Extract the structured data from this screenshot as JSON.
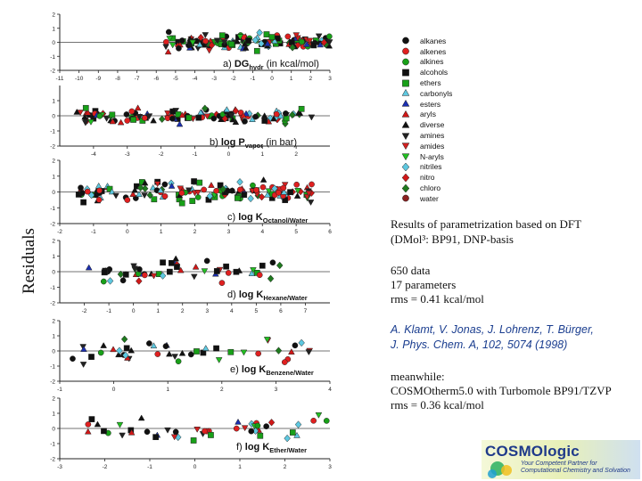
{
  "side_label": "Residuals",
  "chart_data": [
    {
      "type": "scatter",
      "title": "a) DGhydr (in kcal/mol)",
      "title_parts": {
        "prefix": "a) ",
        "main": "DG",
        "sub": "hydr",
        "suffix": " (in kcal/mol)"
      },
      "xlim": [
        -11,
        3
      ],
      "ylim": [
        -2,
        2
      ],
      "xticks": [
        "-11",
        "-10",
        "-9",
        "-8",
        "-7",
        "-6",
        "-5",
        "-4",
        "-3",
        "-2",
        "-1",
        "0",
        "1",
        "2",
        "3"
      ],
      "yticks": [
        "2",
        "1",
        "0",
        "-1",
        "-2"
      ],
      "xtick_values": [
        -11,
        -10,
        -9,
        -8,
        -7,
        -6,
        -5,
        -4,
        -3,
        -2,
        -1,
        0,
        1,
        2,
        3
      ],
      "ytick_values": [
        2,
        1,
        0,
        -1,
        -2
      ],
      "cluster_x": [
        -6,
        3
      ],
      "cluster_spread": 0.35,
      "n_points": 150,
      "seed": 11
    },
    {
      "type": "scatter",
      "title": "b) log Pvapor (in bar)",
      "title_parts": {
        "prefix": "b) ",
        "main": "log P",
        "sub": "vapor",
        "suffix": " (in bar)"
      },
      "xlim": [
        -5,
        3
      ],
      "ylim": [
        -2,
        2
      ],
      "xticks": [
        "-4",
        "-3",
        "-2",
        "-1",
        "0",
        "1",
        "2"
      ],
      "yticks": [
        "1",
        "0",
        "-1",
        "-2"
      ],
      "xtick_values": [
        -4,
        -3,
        -2,
        -1,
        0,
        1,
        2
      ],
      "ytick_values": [
        1,
        0,
        -1,
        -2
      ],
      "cluster_x": [
        -4.5,
        2.5
      ],
      "cluster_spread": 0.35,
      "n_points": 130,
      "seed": 23
    },
    {
      "type": "scatter",
      "title": "c) log KOctanol/Water",
      "title_parts": {
        "prefix": "c) ",
        "main": "log K",
        "sub": "Octanol/Water",
        "suffix": ""
      },
      "xlim": [
        -2,
        6
      ],
      "ylim": [
        -2,
        2
      ],
      "xticks": [
        "-2",
        "-1",
        "0",
        "1",
        "2",
        "3",
        "4",
        "5",
        "6"
      ],
      "yticks": [
        "2",
        "1",
        "0",
        "-1",
        "-2"
      ],
      "xtick_values": [
        -2,
        -1,
        0,
        1,
        2,
        3,
        4,
        5,
        6
      ],
      "ytick_values": [
        2,
        1,
        0,
        -1,
        -2
      ],
      "cluster_x": [
        -1.5,
        5.5
      ],
      "cluster_spread": 0.4,
      "n_points": 150,
      "seed": 37
    },
    {
      "type": "scatter",
      "title": "d) log KHexane/Water",
      "title_parts": {
        "prefix": "d) ",
        "main": "log K",
        "sub": "Hexane/Water",
        "suffix": ""
      },
      "xlim": [
        -3,
        8
      ],
      "ylim": [
        -2,
        2
      ],
      "xticks": [
        "-2",
        "-1",
        "0",
        "1",
        "2",
        "3",
        "4",
        "5",
        "6",
        "7"
      ],
      "yticks": [
        "2",
        "1",
        "0",
        "-1",
        "-2"
      ],
      "xtick_values": [
        -2,
        -1,
        0,
        1,
        2,
        3,
        4,
        5,
        6,
        7
      ],
      "ytick_values": [
        2,
        1,
        0,
        -1,
        -2
      ],
      "cluster_x": [
        -2,
        6
      ],
      "cluster_spread": 0.45,
      "n_points": 55,
      "seed": 41
    },
    {
      "type": "scatter",
      "title": "e) log KBenzene/Water",
      "title_parts": {
        "prefix": "e) ",
        "main": "log K",
        "sub": "Benzene/Water",
        "suffix": ""
      },
      "xlim": [
        -1,
        4
      ],
      "ylim": [
        -2,
        2
      ],
      "xticks": [
        "-1",
        "0",
        "1",
        "2",
        "3",
        "4"
      ],
      "yticks": [
        "2",
        "1",
        "0",
        "-1",
        "-2"
      ],
      "xtick_values": [
        -1,
        0,
        1,
        2,
        3,
        4
      ],
      "ytick_values": [
        2,
        1,
        0,
        -1,
        -2
      ],
      "cluster_x": [
        -1,
        4
      ],
      "cluster_spread": 0.5,
      "n_points": 45,
      "seed": 53
    },
    {
      "type": "scatter",
      "title": "f) log KEther/Water",
      "title_parts": {
        "prefix": "f) ",
        "main": "log K",
        "sub": "Ether/Water",
        "suffix": ""
      },
      "xlim": [
        -3,
        3
      ],
      "ylim": [
        -2,
        2
      ],
      "xticks": [
        "-3",
        "-2",
        "-1",
        "0",
        "1",
        "2",
        "3"
      ],
      "yticks": [
        "2",
        "1",
        "0",
        "-1",
        "-2"
      ],
      "xtick_values": [
        -3,
        -2,
        -1,
        0,
        1,
        2,
        3
      ],
      "ytick_values": [
        2,
        1,
        0,
        -1,
        -2
      ],
      "cluster_x": [
        -2.5,
        3
      ],
      "cluster_spread": 0.5,
      "n_points": 45,
      "seed": 67
    }
  ],
  "legend": [
    {
      "label": "alkanes",
      "marker": "circle",
      "color": "#111111"
    },
    {
      "label": "alkenes",
      "marker": "circle",
      "color": "#e02020"
    },
    {
      "label": "alkines",
      "marker": "circle",
      "color": "#18a018"
    },
    {
      "label": "alcohols",
      "marker": "square",
      "color": "#111111"
    },
    {
      "label": "ethers",
      "marker": "square",
      "color": "#18a018"
    },
    {
      "label": "carbonyls",
      "marker": "triangle-up",
      "color": "#5ec8e0"
    },
    {
      "label": "esters",
      "marker": "triangle-up",
      "color": "#1b2fb0"
    },
    {
      "label": "aryls",
      "marker": "triangle-up",
      "color": "#d01818"
    },
    {
      "label": "diverse",
      "marker": "triangle-up",
      "color": "#111111"
    },
    {
      "label": "amines",
      "marker": "triangle-down",
      "color": "#222222"
    },
    {
      "label": "amides",
      "marker": "triangle-down",
      "color": "#d02020"
    },
    {
      "label": "N-aryls",
      "marker": "triangle-down",
      "color": "#22c022"
    },
    {
      "label": "nitriles",
      "marker": "diamond",
      "color": "#5ec8e0"
    },
    {
      "label": "nitro",
      "marker": "diamond",
      "color": "#d01818"
    },
    {
      "label": "chloro",
      "marker": "diamond",
      "color": "#1f7a1f"
    },
    {
      "label": "water",
      "marker": "circle",
      "color": "#8b2020"
    }
  ],
  "text": {
    "results_line1": "Results of parametrization based on DFT",
    "results_line2": "(DMol³:   BP91, DNP-basis",
    "stat_data": "650 data",
    "stat_params": "17 parameters",
    "stat_rms": "rms = 0.41 kcal/mol",
    "ref_line1": "A. Klamt, V. Jonas, J. Lohrenz, T. Bürger,",
    "ref_line2": " J. Phys. Chem. A, 102, 5074 (1998)",
    "meanwhile": "meanwhile:",
    "cosmo_line": "COSMOtherm5.0 with Turbomole BP91/TZVP",
    "cosmo_rms": "rms = 0.36 kcal/mol"
  },
  "logo": {
    "name": "COSMOlogic",
    "tagline1": "Your Competent Partner for",
    "tagline2": "Computational Chemistry and Solvation"
  }
}
